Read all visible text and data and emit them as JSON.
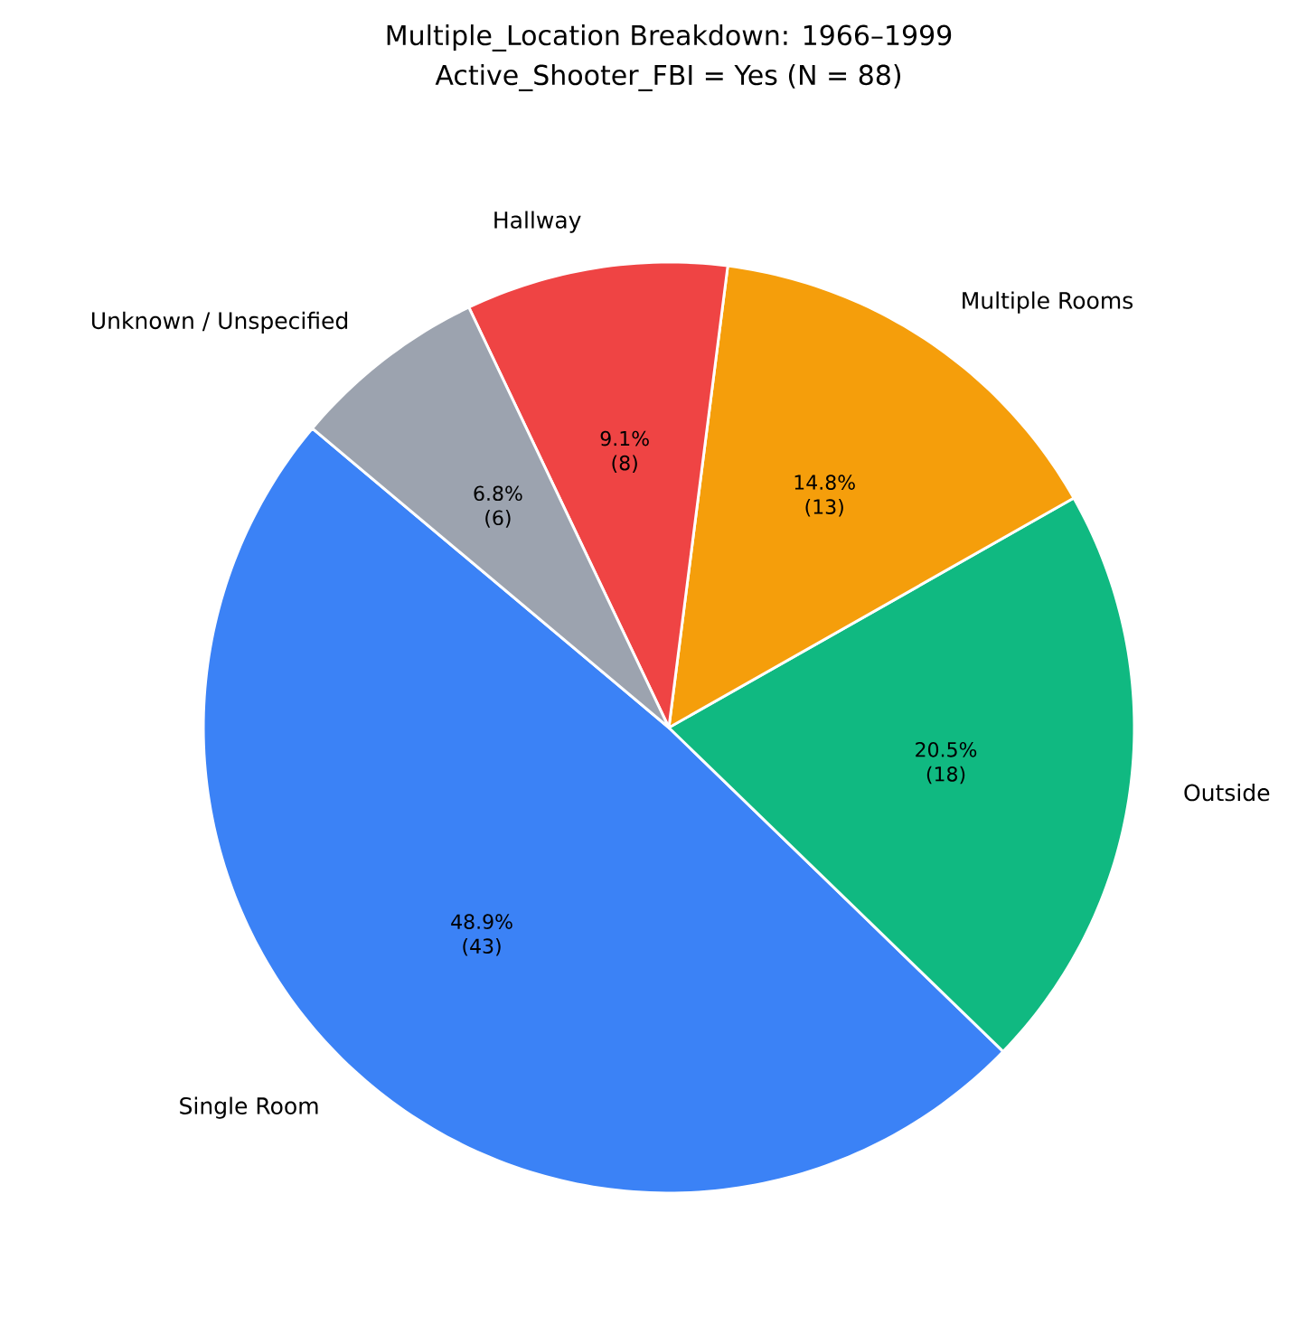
{
  "chart_data": {
    "type": "pie",
    "title": "Multiple_Location Breakdown: 1966–1999",
    "subtitle": "Active_Shooter_FBI = Yes (N = 88)",
    "categories": [
      "Single Room",
      "Outside",
      "Multiple Rooms",
      "Hallway",
      "Unknown / Unspecified"
    ],
    "values": [
      43,
      18,
      13,
      8,
      6
    ],
    "colors": [
      "#3b82f6",
      "#10b981",
      "#f59e0b",
      "#ef4444",
      "#9ca3af"
    ],
    "value_labels": [
      "48.9% (43)",
      "20.5% (18)",
      "14.8% (13)",
      "9.1% (8)",
      "6.8% (6)"
    ]
  }
}
